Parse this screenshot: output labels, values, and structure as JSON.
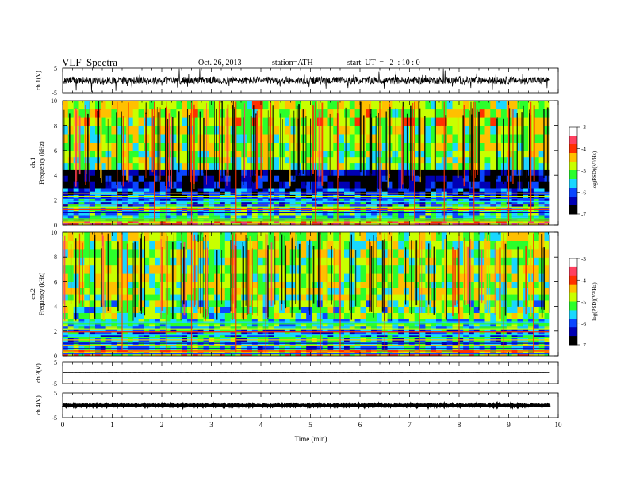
{
  "header": {
    "title": "VLF  Spectra",
    "date": "Oct. 26, 2013",
    "station": "station=ATH",
    "start_ut": "start  UT  =   2  : 10 : 0"
  },
  "colorbar": {
    "label": "log(PSD)(V²/Hz)",
    "ticks": [
      "-3",
      "-4",
      "-5",
      "-6",
      "-7"
    ],
    "range": [
      -7,
      -3
    ],
    "colors": [
      "#000000",
      "#0000b4",
      "#0a46ff",
      "#19d7ff",
      "#2bff2b",
      "#c8ff00",
      "#ffc000",
      "#ff3000",
      "#ff4060",
      "#ffffff"
    ]
  },
  "chart_data": [
    {
      "type": "line",
      "name": "ch1-waveform",
      "ylabel": "ch.1(V)",
      "ylim": [
        -5,
        5
      ],
      "yticks": [
        "5",
        "-5"
      ],
      "xlim": [
        0,
        10
      ],
      "baseline": 0,
      "amplitude_typical": 1.5,
      "line_color": "#000000"
    },
    {
      "type": "heatmap",
      "name": "ch1-spectrogram",
      "ylabel_lines": [
        "ch.1",
        "Frequency (kHz)"
      ],
      "ylim": [
        0,
        10
      ],
      "yticks": [
        "0",
        "2",
        "4",
        "6",
        "8",
        "10"
      ],
      "xlim": [
        0,
        9.83
      ],
      "value_units": "log(PSD) (V²/Hz)",
      "bands_khz": [
        0,
        0.5,
        1.5,
        2.2,
        3.0,
        4.5,
        6.0,
        8.0,
        10.0
      ],
      "band_mean_log_psd": [
        -4.3,
        -5.4,
        -5.8,
        -6.1,
        -6.6,
        -5.1,
        -4.9,
        -4.8
      ],
      "emission_bursts_min": [
        0.55,
        1.1,
        1.85,
        2.1,
        2.6,
        3.5,
        4.2,
        5.1,
        5.55,
        6.4,
        7.1,
        7.7,
        8.3,
        9.0,
        9.45
      ]
    },
    {
      "type": "heatmap",
      "name": "ch2-spectrogram",
      "ylabel_lines": [
        "ch.2",
        "Frequency (kHz)"
      ],
      "ylim": [
        0,
        10
      ],
      "yticks": [
        "0",
        "2",
        "4",
        "6",
        "8",
        "10"
      ],
      "xlim": [
        0,
        9.83
      ],
      "value_units": "log(PSD) (V²/Hz)",
      "bands_khz": [
        0,
        0.5,
        1.5,
        2.2,
        3.0,
        4.5,
        6.0,
        8.0,
        10.0
      ],
      "band_mean_log_psd": [
        -4.5,
        -5.6,
        -5.9,
        -5.4,
        -5.2,
        -5.0,
        -4.9,
        -4.9
      ],
      "emission_bursts_min": [
        0.55,
        1.2,
        2.1,
        2.6,
        3.5,
        4.1,
        5.2,
        5.6,
        6.5,
        7.2,
        8.0,
        8.9,
        9.5
      ]
    },
    {
      "type": "line",
      "name": "ch3-waveform",
      "ylabel": "ch.3(V)",
      "ylim": [
        -5,
        5
      ],
      "yticks": [
        "5",
        "-5"
      ],
      "xlim": [
        0,
        10
      ],
      "baseline": 0,
      "amplitude_typical": 0.05,
      "line_color": "#000000"
    },
    {
      "type": "line",
      "name": "ch4-waveform",
      "ylabel": "ch.4(V)",
      "ylim": [
        -5,
        5
      ],
      "yticks": [
        "5",
        "-5"
      ],
      "xlim": [
        0,
        10
      ],
      "baseline": 0,
      "amplitude_typical": 0.25,
      "line_color": "#000000"
    }
  ],
  "xaxis": {
    "label": "Time  (min)",
    "ticks": [
      "0",
      "1",
      "2",
      "3",
      "4",
      "5",
      "6",
      "7",
      "8",
      "9",
      "10"
    ],
    "range": [
      0,
      10
    ]
  }
}
